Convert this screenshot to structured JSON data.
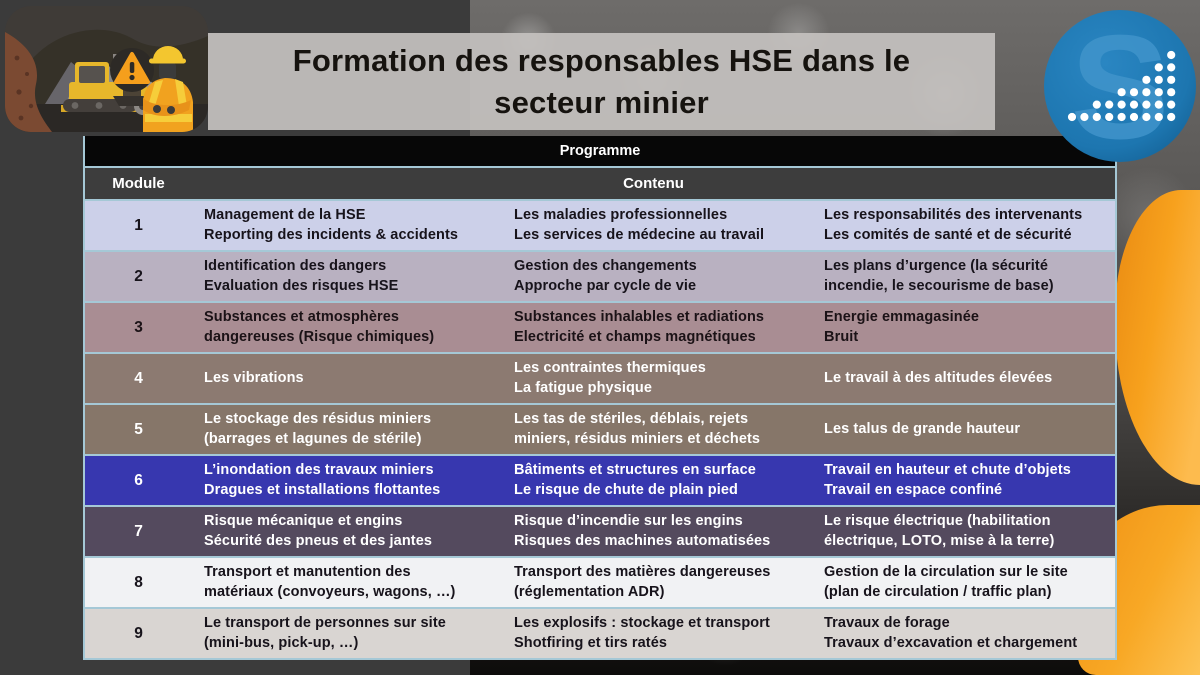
{
  "slide": {
    "title": "Formation des responsables HSE dans le\nsecteur minier"
  },
  "table": {
    "programme_header": "Programme",
    "module_header": "Module",
    "contenu_header": "Contenu",
    "rows": [
      {
        "module": "1",
        "cells": [
          "Management de la HSE\nReporting des incidents & accidents",
          "Les maladies professionnelles\nLes services de médecine au travail",
          "Les responsabilités des intervenants\nLes comités de santé et de sécurité"
        ]
      },
      {
        "module": "2",
        "cells": [
          "Identification des dangers\nEvaluation des risques HSE",
          "Gestion des changements\nApproche par cycle de vie",
          "Les plans d’urgence (la sécurité\nincendie, le secourisme de base)"
        ]
      },
      {
        "module": "3",
        "cells": [
          "Substances et atmosphères\ndangereuses (Risque chimiques)",
          "Substances inhalables et radiations\nElectricité et champs magnétiques",
          "Energie emmagasinée\nBruit"
        ]
      },
      {
        "module": "4",
        "cells": [
          "Les vibrations",
          "Les contraintes thermiques\nLa fatigue physique",
          "Le travail à des altitudes élevées"
        ]
      },
      {
        "module": "5",
        "cells": [
          "Le stockage des résidus miniers\n(barrages et lagunes de stérile)",
          "Les tas de stériles, déblais, rejets\nminiers, résidus miniers et déchets",
          "Les talus de grande hauteur"
        ]
      },
      {
        "module": "6",
        "cells": [
          "L’inondation des travaux miniers\nDragues et installations flottantes",
          "Bâtiments et structures en surface\nLe risque de chute de plain pied",
          "Travail en hauteur et chute d’objets\nTravail en espace confiné"
        ]
      },
      {
        "module": "7",
        "cells": [
          "Risque mécanique et engins\nSécurité des pneus et des jantes",
          "Risque d’incendie sur les engins\nRisques des machines automatisées",
          "Le risque électrique (habilitation\nélectrique, LOTO, mise à la terre)"
        ]
      },
      {
        "module": "8",
        "cells": [
          "Transport et manutention des\nmatériaux (convoyeurs, wagons, …)",
          "Transport des matières dangereuses\n(réglementation ADR)",
          "Gestion de la circulation sur le site\n(plan de circulation / traffic plan)"
        ]
      },
      {
        "module": "9",
        "cells": [
          "Le transport de personnes sur site\n(mini-bus, pick-up, …)",
          "Les explosifs : stockage et transport\nShotfiring et tirs ratés",
          "Travaux de forage\nTravaux d’excavation et chargement"
        ]
      }
    ],
    "row_styles": [
      {
        "bg": "#ccd0e9",
        "fg": "#17131b"
      },
      {
        "bg": "#b9b1c1",
        "fg": "#17131b"
      },
      {
        "bg": "#a98d93",
        "fg": "#1b1216"
      },
      {
        "bg": "#8c7a71",
        "fg": "#ffffff"
      },
      {
        "bg": "#867669",
        "fg": "#ffffff"
      },
      {
        "bg": "#3737af",
        "fg": "#ffffff"
      },
      {
        "bg": "#544a5e",
        "fg": "#ffffff"
      },
      {
        "bg": "#f1f2f4",
        "fg": "#17131b"
      },
      {
        "bg": "#d9d5d2",
        "fg": "#17131b"
      }
    ]
  },
  "logo": {
    "letter": "S",
    "dot_columns": [
      1,
      1,
      2,
      2,
      3,
      3,
      4,
      5,
      6
    ],
    "circle_color": "#1d76b0",
    "letter_color": "#4094cb",
    "dot_color": "#ffffff"
  },
  "colors": {
    "background": "#3b3b3b",
    "table_border": "#a5c8d6",
    "programme_bar": "#070707",
    "subheader_bar": "#3d3d3d",
    "title_bg": "#c4c1be",
    "title_fg": "#16130f",
    "hi_vis_orange": "#f7a11d",
    "warning_orange": "#f59f1c",
    "machine_yellow": "#e7b72b"
  }
}
